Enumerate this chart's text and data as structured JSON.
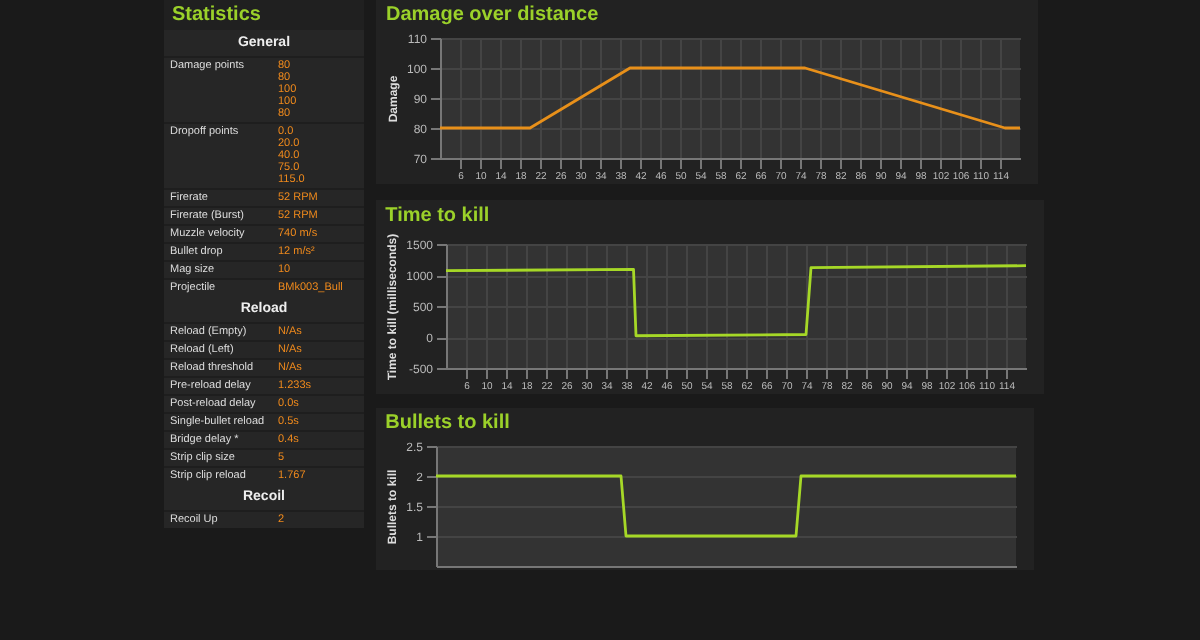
{
  "chart_data": [
    {
      "type": "other",
      "title": "Statistics",
      "categories": [
        "General",
        "Damage points",
        "Dropoff points",
        "Firerate",
        "Firerate (Burst)",
        "Muzzle velocity",
        "Bullet drop",
        "Mag size",
        "Projectile",
        "Reload",
        "Reload (Empty)",
        "Reload (Left)",
        "Reload threshold",
        "Pre-reload delay",
        "Post-reload delay",
        "Single-bullet reload",
        "Bridge delay *",
        "Strip clip size",
        "Strip clip reload",
        "Recoil",
        "Recoil Up"
      ],
      "value_labels": [
        null,
        "80\n80\n100\n100\n80",
        "0.0\n20.0\n40.0\n75.0\n115.0",
        "52 RPM",
        "52 RPM",
        "740 m/s",
        "12 m/s²",
        "10",
        "BMk003_Bull",
        null,
        "N/As",
        "N/As",
        "N/As",
        "1.233s",
        "0.0s",
        "0.5s",
        "0.4s",
        "5",
        "1.767",
        null,
        "2"
      ]
    },
    {
      "type": "line",
      "title": "Damage over distance",
      "ylabel": "Damage",
      "xlim": [
        2,
        118
      ],
      "xticks": [
        6,
        10,
        14,
        18,
        22,
        26,
        30,
        34,
        38,
        42,
        46,
        50,
        54,
        58,
        62,
        66,
        70,
        74,
        78,
        82,
        86,
        90,
        94,
        98,
        102,
        106,
        110,
        114
      ],
      "ylim": [
        70,
        110
      ],
      "yticks": [
        70,
        80,
        90,
        100,
        110
      ],
      "grid": true,
      "series": [
        {
          "color": "#e8901a",
          "x": [
            2,
            20,
            40,
            75,
            115,
            118
          ],
          "values": [
            80,
            80,
            100,
            100,
            80,
            80
          ]
        }
      ]
    },
    {
      "type": "line",
      "title": "Time to kill",
      "ylabel": "Time to kill (milliseconds)",
      "xlim": [
        2,
        118
      ],
      "xticks": [
        6,
        10,
        14,
        18,
        22,
        26,
        30,
        34,
        38,
        42,
        46,
        50,
        54,
        58,
        62,
        66,
        70,
        74,
        78,
        82,
        86,
        90,
        94,
        98,
        102,
        106,
        110,
        114
      ],
      "ylim": [
        -500,
        1500
      ],
      "yticks": [
        -500,
        0,
        500,
        1000,
        1500
      ],
      "grid": true,
      "series": [
        {
          "color": "#a6d827",
          "x": [
            2,
            39.5,
            40,
            74,
            75,
            118
          ],
          "values": [
            1070,
            1090,
            20,
            40,
            1120,
            1150
          ]
        }
      ]
    },
    {
      "type": "line",
      "title": "Bullets to kill",
      "ylabel": "Bullets to kill",
      "ylim": [
        0.5,
        2.5
      ],
      "yticks": [
        1,
        1.5,
        2,
        2.5
      ],
      "grid": true,
      "tick_labels": "y",
      "categories": [
        null,
        null,
        null,
        null,
        null,
        null,
        null,
        null,
        null,
        null,
        null,
        null,
        null,
        null,
        null,
        null,
        null,
        null,
        null,
        null,
        null,
        null,
        null,
        null,
        null,
        null,
        null,
        null,
        null,
        null,
        null,
        null,
        null,
        null,
        null,
        null,
        null,
        null,
        null,
        null,
        null,
        null,
        null,
        null,
        null,
        null,
        null,
        null,
        null,
        null,
        null,
        null,
        null,
        null,
        null,
        null,
        null,
        null,
        null,
        null,
        null,
        null,
        null,
        null,
        null,
        null,
        null,
        null,
        null,
        null,
        null,
        null,
        null,
        null,
        null,
        null,
        null,
        null,
        null,
        null,
        null,
        null,
        null,
        null,
        null,
        null,
        null,
        null,
        null,
        null,
        null,
        null,
        null,
        null,
        null,
        null,
        null,
        null,
        null,
        null,
        null,
        null,
        null,
        null,
        null,
        null,
        null,
        null,
        null,
        null,
        null,
        null,
        null,
        null,
        null,
        null,
        null
      ],
      "series": [
        {
          "color": "#a6d827",
          "values": [
            2,
            2,
            2,
            2,
            2,
            2,
            2,
            2,
            2,
            2,
            2,
            2,
            2,
            2,
            2,
            2,
            2,
            2,
            2,
            2,
            2,
            2,
            2,
            2,
            2,
            2,
            2,
            2,
            2,
            2,
            2,
            2,
            2,
            2,
            2,
            2,
            2,
            2,
            1,
            1,
            1,
            1,
            1,
            1,
            1,
            1,
            1,
            1,
            1,
            1,
            1,
            1,
            1,
            1,
            1,
            1,
            1,
            1,
            1,
            1,
            1,
            1,
            1,
            1,
            1,
            1,
            1,
            1,
            1,
            1,
            1,
            1,
            1,
            2,
            2,
            2,
            2,
            2,
            2,
            2,
            2,
            2,
            2,
            2,
            2,
            2,
            2,
            2,
            2,
            2,
            2,
            2,
            2,
            2,
            2,
            2,
            2,
            2,
            2,
            2,
            2,
            2,
            2,
            2,
            2,
            2,
            2,
            2,
            2,
            2,
            2,
            2,
            2,
            2,
            2,
            2,
            2
          ]
        }
      ]
    }
  ]
}
